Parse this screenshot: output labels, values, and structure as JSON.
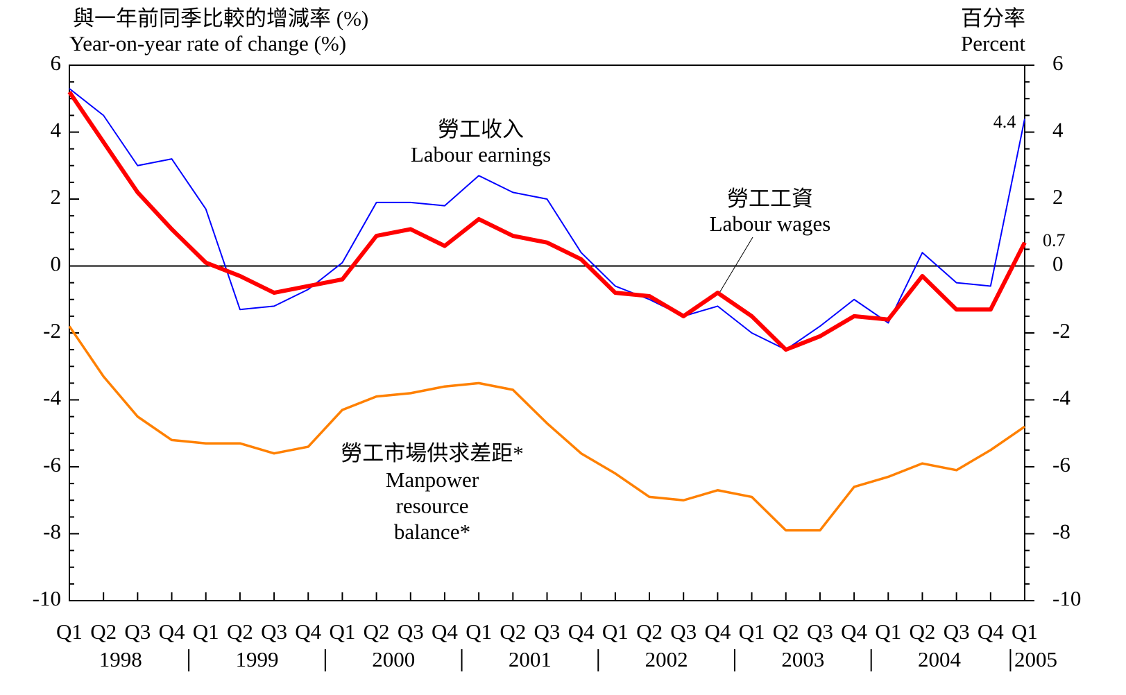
{
  "chart_data": {
    "type": "line",
    "left_title": [
      "與一年前同季比較的增減率 (%)",
      "Year-on-year rate of change (%)"
    ],
    "right_title": [
      "百分率",
      "Percent"
    ],
    "categories": [
      "Q1",
      "Q2",
      "Q3",
      "Q4",
      "Q1",
      "Q2",
      "Q3",
      "Q4",
      "Q1",
      "Q2",
      "Q3",
      "Q4",
      "Q1",
      "Q2",
      "Q3",
      "Q4",
      "Q1",
      "Q2",
      "Q3",
      "Q4",
      "Q1",
      "Q2",
      "Q3",
      "Q4",
      "Q1",
      "Q2",
      "Q3",
      "Q4",
      "Q1"
    ],
    "years": [
      "1998",
      "1999",
      "2000",
      "2001",
      "2002",
      "2003",
      "2004",
      "2005"
    ],
    "ylim": [
      -10,
      6
    ],
    "yticks": [
      -10,
      -8,
      -6,
      -4,
      -2,
      0,
      2,
      4,
      6
    ],
    "yminor_step": 0.5,
    "y2lim": [
      -10,
      6
    ],
    "y2ticks": [
      -10,
      -8,
      -6,
      -4,
      -2,
      0,
      2,
      4,
      6
    ],
    "zero_line": true,
    "series": [
      {
        "name_lines": [
          "勞工收入",
          "Labour earnings"
        ],
        "color": "#0000ff",
        "width": 2,
        "values": [
          5.3,
          4.5,
          3.0,
          3.2,
          1.7,
          -1.3,
          -1.2,
          -0.7,
          0.1,
          1.9,
          1.9,
          1.8,
          2.7,
          2.2,
          2.0,
          0.4,
          -0.6,
          -1.0,
          -1.5,
          -1.2,
          -2.0,
          -2.5,
          -1.8,
          -1.0,
          -1.7,
          0.4,
          -0.5,
          -0.6,
          4.4
        ],
        "value_labels": [
          null,
          null,
          null,
          null,
          null,
          null,
          null,
          null,
          null,
          null,
          null,
          null,
          null,
          null,
          null,
          null,
          null,
          null,
          null,
          null,
          null,
          null,
          null,
          null,
          null,
          null,
          null,
          null,
          "4.4"
        ]
      },
      {
        "name_lines": [
          "勞工工資",
          "Labour wages"
        ],
        "color": "#ff0000",
        "width": 6,
        "values": [
          5.2,
          3.7,
          2.2,
          1.1,
          0.1,
          -0.3,
          -0.8,
          -0.6,
          -0.4,
          0.9,
          1.1,
          0.6,
          1.4,
          0.9,
          0.7,
          0.2,
          -0.8,
          -0.9,
          -1.5,
          -0.8,
          -1.5,
          -2.5,
          -2.1,
          -1.5,
          -1.6,
          -0.3,
          -1.3,
          -1.3,
          0.7
        ],
        "value_labels": [
          null,
          null,
          null,
          null,
          null,
          null,
          null,
          null,
          null,
          null,
          null,
          null,
          null,
          null,
          null,
          null,
          null,
          null,
          null,
          null,
          null,
          null,
          null,
          null,
          null,
          null,
          null,
          null,
          "0.7"
        ]
      },
      {
        "name_lines": [
          "勞工市場供求差距*",
          "Manpower",
          "resource",
          "balance*"
        ],
        "color": "#ff8000",
        "width": 3.5,
        "axis": "y2",
        "values": [
          -1.8,
          -3.3,
          -4.5,
          -5.2,
          -5.3,
          -5.3,
          -5.6,
          -5.4,
          -4.3,
          -3.9,
          -3.8,
          -3.6,
          -3.5,
          -3.7,
          -4.7,
          -5.6,
          -6.2,
          -6.9,
          -7.0,
          -6.7,
          -6.9,
          -7.9,
          -7.9,
          -6.6,
          -6.3,
          -5.9,
          -6.1,
          -5.5,
          -4.8
        ]
      }
    ]
  }
}
